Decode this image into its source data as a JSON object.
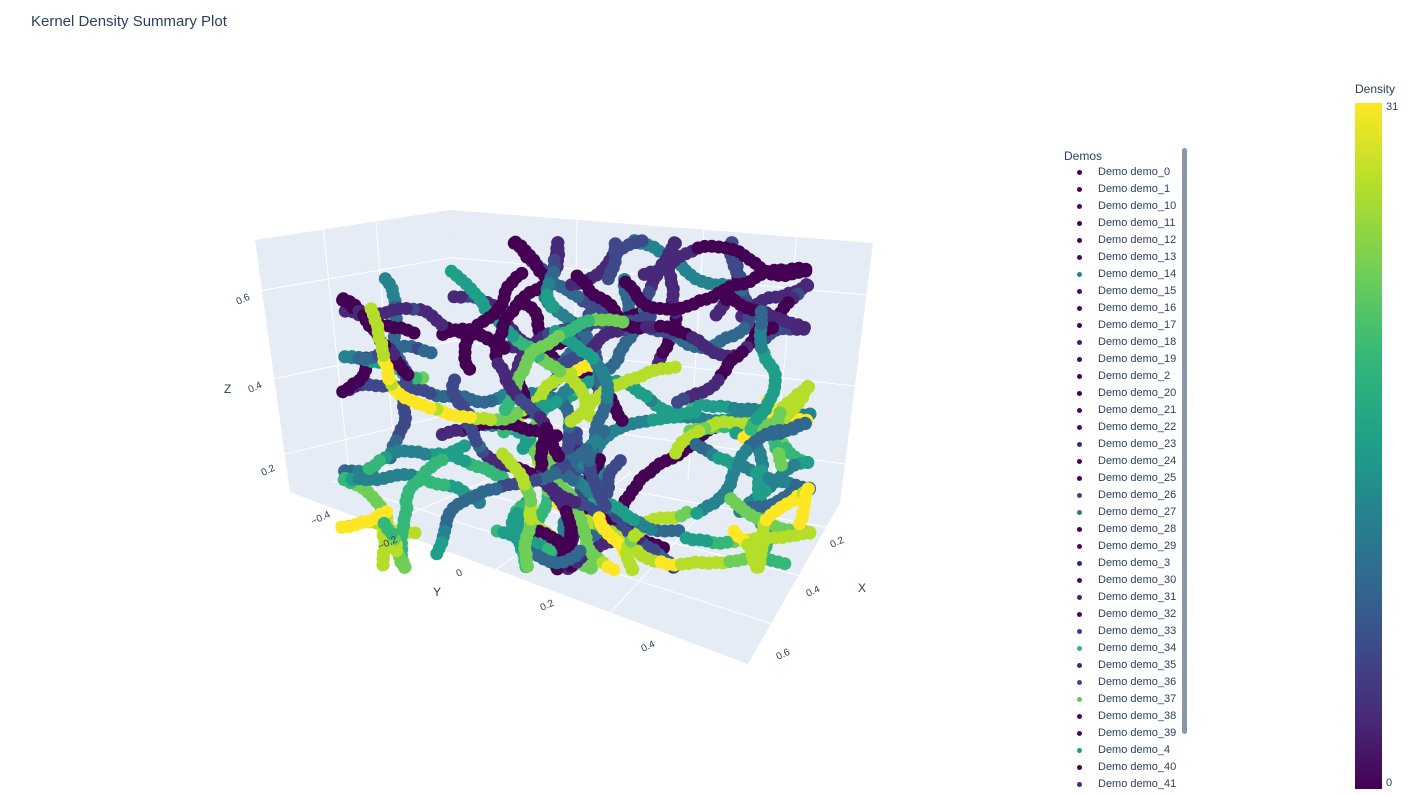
{
  "title": "Kernel Density Summary Plot",
  "chart_data": {
    "type": "scatter3d",
    "title": "Kernel Density Summary Plot",
    "axes": {
      "x": {
        "label": "X",
        "ticks": [
          "0.2",
          "0.4",
          "0.6"
        ],
        "range": [
          0.1,
          0.7
        ]
      },
      "y": {
        "label": "Y",
        "ticks": [
          "−0.4",
          "−0.2",
          "0",
          "0.2",
          "0.4"
        ],
        "range": [
          -0.5,
          0.5
        ]
      },
      "z": {
        "label": "Z",
        "ticks": [
          "0.2",
          "0.4",
          "0.6"
        ],
        "range": [
          0.1,
          0.7
        ]
      }
    },
    "colorscale": "Viridis",
    "colorbar": {
      "title": "Density",
      "min": "0",
      "max": "31"
    },
    "legend": {
      "title": "Demos",
      "placement": "right",
      "items": [
        {
          "label": "Demo demo_0",
          "color": "#440154"
        },
        {
          "label": "Demo demo_1",
          "color": "#440154"
        },
        {
          "label": "Demo demo_10",
          "color": "#460a5d"
        },
        {
          "label": "Demo demo_11",
          "color": "#440154"
        },
        {
          "label": "Demo demo_12",
          "color": "#440154"
        },
        {
          "label": "Demo demo_13",
          "color": "#460a5d"
        },
        {
          "label": "Demo demo_14",
          "color": "#26828e"
        },
        {
          "label": "Demo demo_15",
          "color": "#470e61"
        },
        {
          "label": "Demo demo_16",
          "color": "#46085c"
        },
        {
          "label": "Demo demo_17",
          "color": "#440154"
        },
        {
          "label": "Demo demo_18",
          "color": "#48186a"
        },
        {
          "label": "Demo demo_19",
          "color": "#46085c"
        },
        {
          "label": "Demo demo_2",
          "color": "#440154"
        },
        {
          "label": "Demo demo_20",
          "color": "#440154"
        },
        {
          "label": "Demo demo_21",
          "color": "#46085c"
        },
        {
          "label": "Demo demo_22",
          "color": "#460a5d"
        },
        {
          "label": "Demo demo_23",
          "color": "#482475"
        },
        {
          "label": "Demo demo_24",
          "color": "#440154"
        },
        {
          "label": "Demo demo_25",
          "color": "#440154"
        },
        {
          "label": "Demo demo_26",
          "color": "#414487"
        },
        {
          "label": "Demo demo_27",
          "color": "#2a788e"
        },
        {
          "label": "Demo demo_28",
          "color": "#440154"
        },
        {
          "label": "Demo demo_29",
          "color": "#46085c"
        },
        {
          "label": "Demo demo_3",
          "color": "#481a6c"
        },
        {
          "label": "Demo demo_30",
          "color": "#460a5d"
        },
        {
          "label": "Demo demo_31",
          "color": "#482071"
        },
        {
          "label": "Demo demo_32",
          "color": "#46085c"
        },
        {
          "label": "Demo demo_33",
          "color": "#443983"
        },
        {
          "label": "Demo demo_34",
          "color": "#35b779"
        },
        {
          "label": "Demo demo_35",
          "color": "#482475"
        },
        {
          "label": "Demo demo_36",
          "color": "#414487"
        },
        {
          "label": "Demo demo_37",
          "color": "#5ec962"
        },
        {
          "label": "Demo demo_38",
          "color": "#46085c"
        },
        {
          "label": "Demo demo_39",
          "color": "#460a5d"
        },
        {
          "label": "Demo demo_4",
          "color": "#1f9e89"
        },
        {
          "label": "Demo demo_40",
          "color": "#440154"
        },
        {
          "label": "Demo demo_41",
          "color": "#482878"
        }
      ]
    }
  }
}
